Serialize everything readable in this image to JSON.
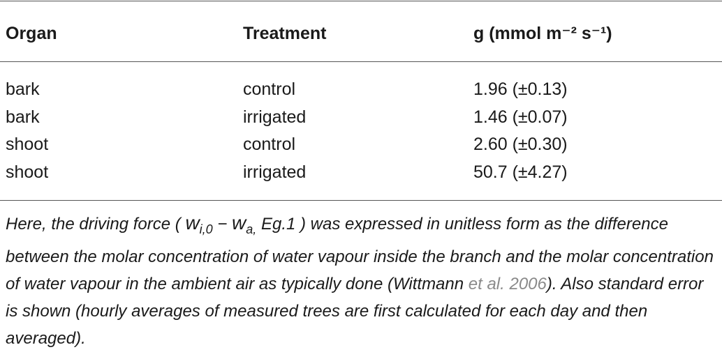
{
  "table": {
    "header": [
      "Organ",
      "Treatment",
      "g (mmol m⁻² s⁻¹)"
    ],
    "rows": [
      [
        "bark",
        "control",
        "1.96 (±0.13)"
      ],
      [
        "bark",
        "irrigated",
        "1.46 (±0.07)"
      ],
      [
        "shoot",
        "control",
        "2.60 (±0.30)"
      ],
      [
        "shoot",
        "irrigated",
        "50.7 (±4.27)"
      ]
    ]
  },
  "footnote": {
    "before": "Here, the driving force ( ",
    "w1": "w",
    "sub1": "i,0",
    "minus": " − ",
    "w2": "w",
    "sub2": "a,",
    "eq": " Eg.1",
    "after": " ) was expressed in unitless form as the difference between the molar concentration of water vapour inside the branch and the molar concentration of water vapour in the ambient air as typically done (Wittmann ",
    "link": "et al. 2006",
    "end": "). Also standard error is shown (hourly averages of measured trees are first calculated for each day and then averaged)."
  }
}
